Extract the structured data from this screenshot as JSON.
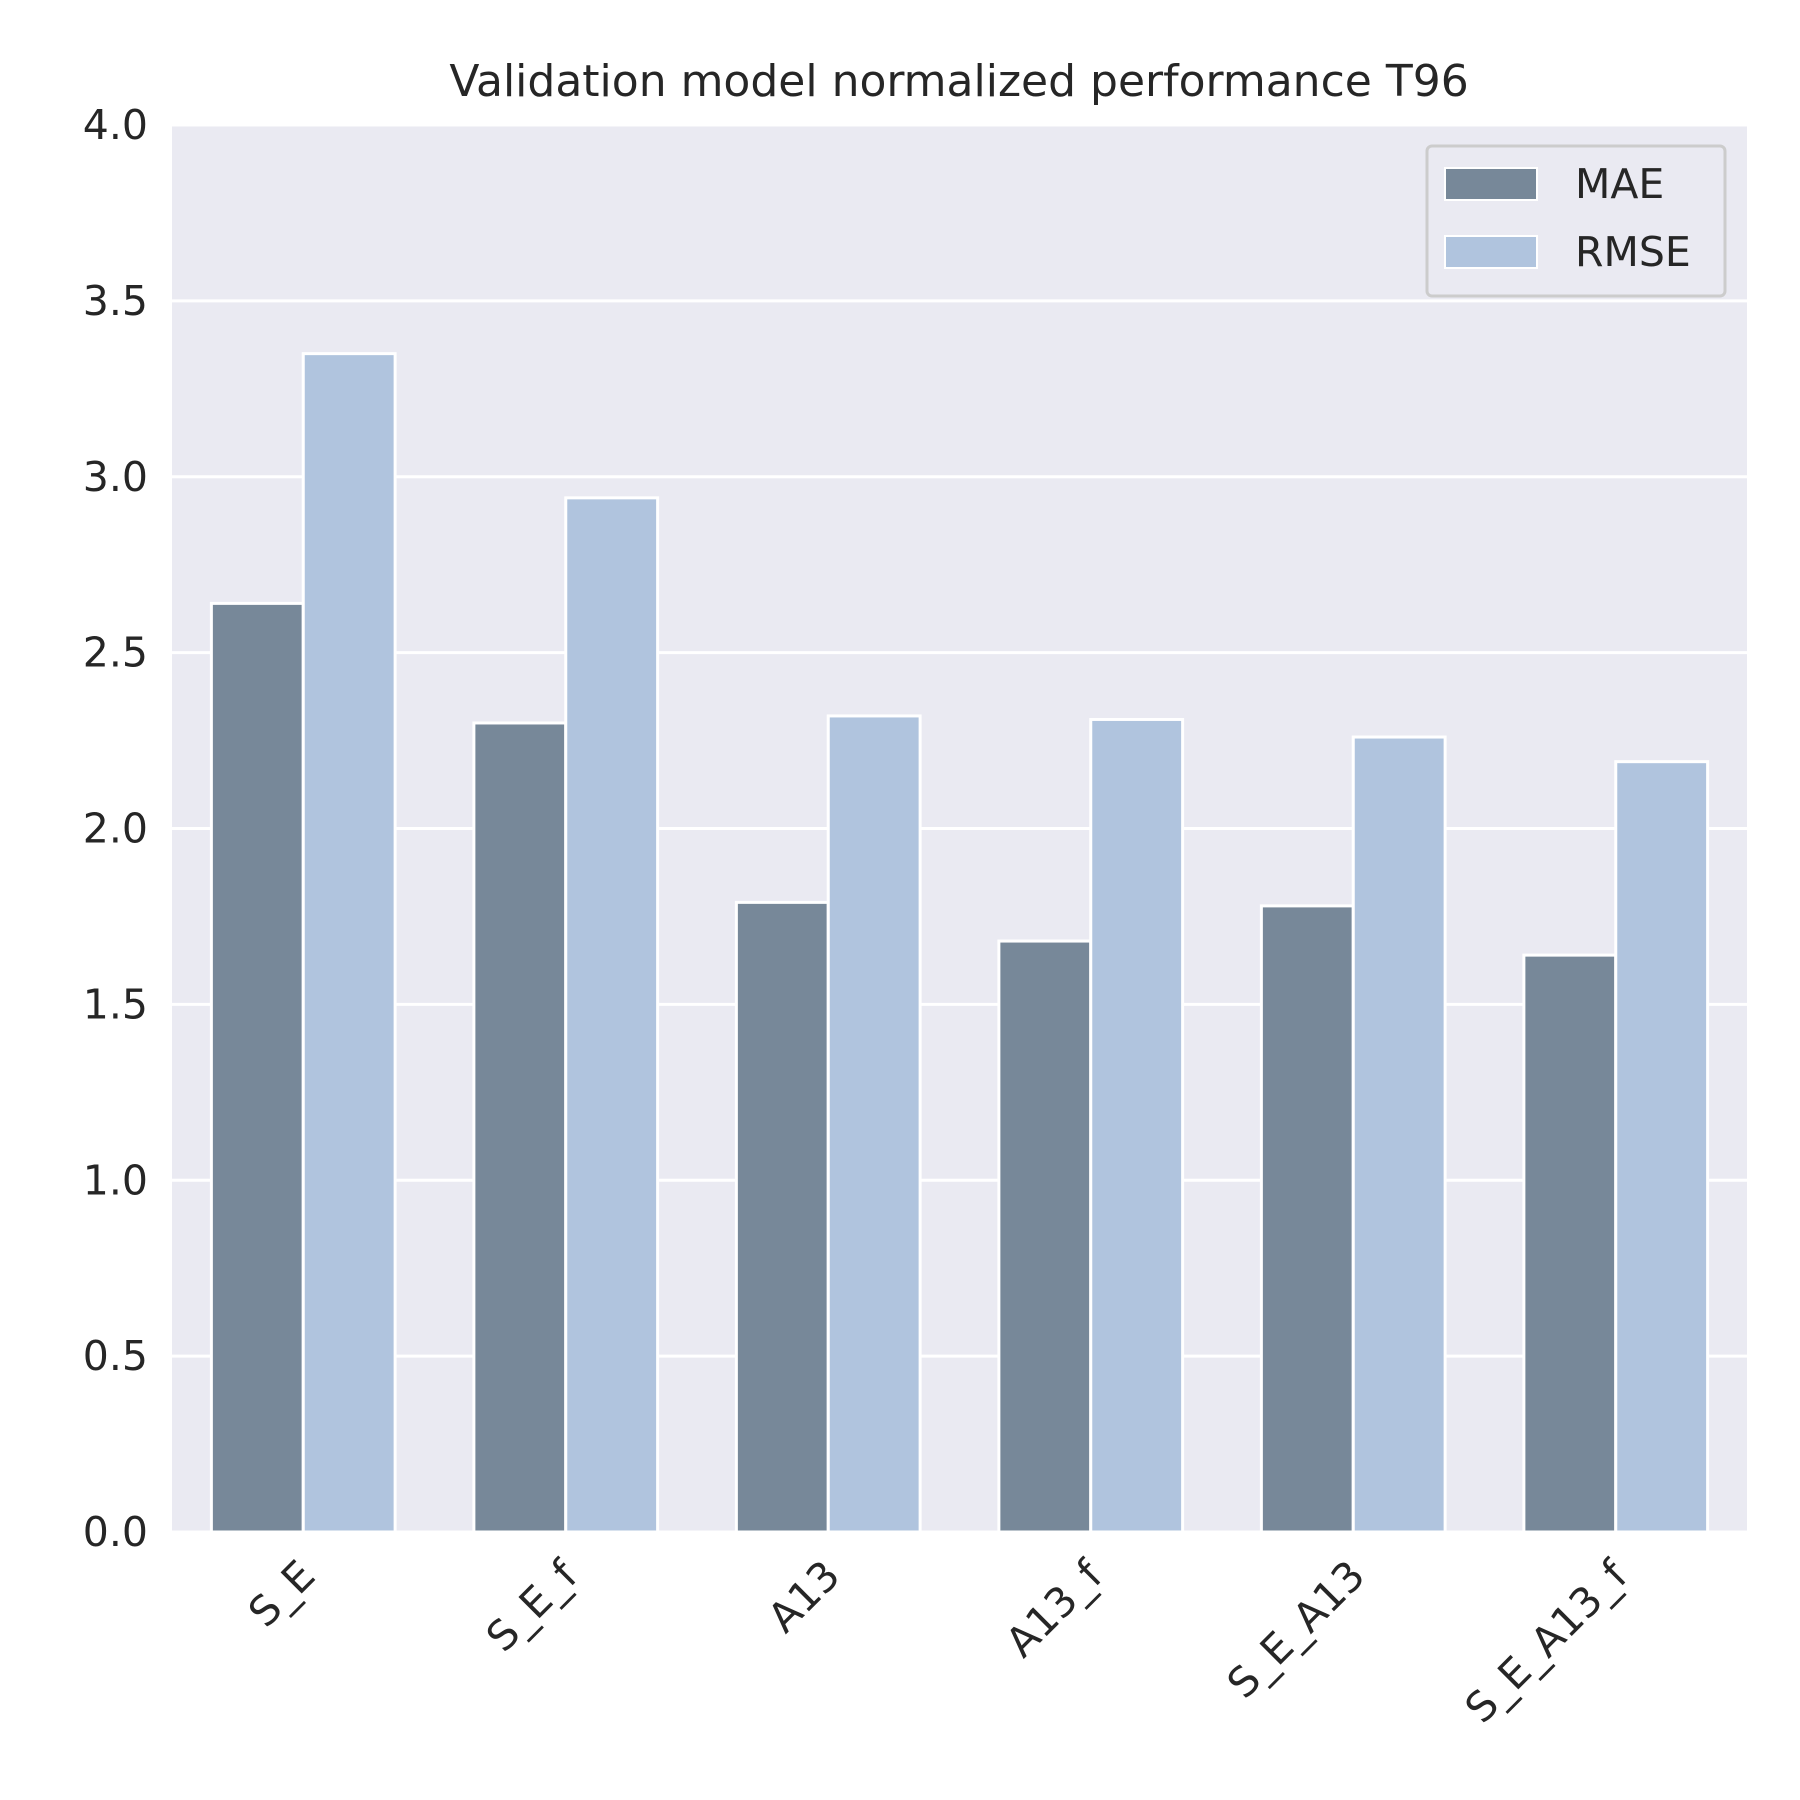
{
  "colors": {
    "plot_background": "#eaeaf2",
    "grid": "#ffffff",
    "text": "#262626",
    "bar_edge": "#ffffff"
  },
  "chart_data": {
    "type": "bar",
    "title": "Validation model normalized performance T96",
    "xlabel": "",
    "ylabel": "",
    "categories": [
      "S_E",
      "S_E_f",
      "A13",
      "A13_f",
      "S_E_A13",
      "S_E_A13_f"
    ],
    "series": [
      {
        "name": "MAE",
        "color": "#778899",
        "values": [
          2.64,
          2.3,
          1.79,
          1.68,
          1.78,
          1.64
        ]
      },
      {
        "name": "RMSE",
        "color": "#b0c4de",
        "values": [
          3.35,
          2.94,
          2.32,
          2.31,
          2.26,
          2.19
        ]
      }
    ],
    "ylim": [
      0,
      4.0
    ],
    "yticks": [
      "0.0",
      "0.5",
      "1.0",
      "1.5",
      "2.0",
      "2.5",
      "3.0",
      "3.5",
      "4.0"
    ],
    "grid": true,
    "legend_position": "top-right",
    "xtick_rotation": "45deg"
  }
}
